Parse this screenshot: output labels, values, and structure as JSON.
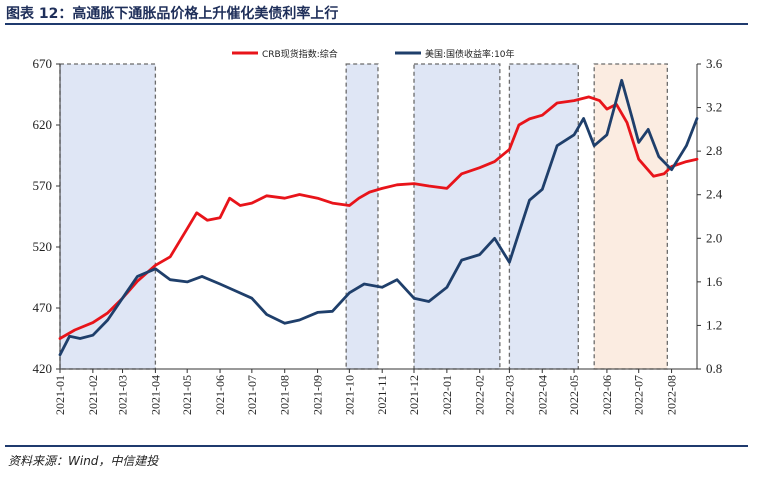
{
  "title": "图表 12：高通胀下通胀品价格上升催化美债利率上行",
  "source": "资料来源：Wind，中信建投",
  "colors": {
    "crb": "#e8141a",
    "treasury": "#1f3f6b",
    "shade_blue": "#dfe6f5",
    "shade_orange": "#fbece1",
    "box_border": "#6b6b6b"
  },
  "chart_data": {
    "type": "line",
    "x": [
      "2021-01",
      "2021-02",
      "2021-03",
      "2021-04",
      "2021-05",
      "2021-06",
      "2021-07",
      "2021-08",
      "2021-09",
      "2021-10",
      "2021-11",
      "2021-12",
      "2022-01",
      "2022-02",
      "2022-03",
      "2022-04",
      "2022-05",
      "2022-06",
      "2022-07",
      "2022-08"
    ],
    "x_start": "2021-01",
    "x_end": "2022-08-25",
    "y_left": {
      "lim": [
        420,
        670
      ],
      "ticks": [
        420,
        470,
        520,
        570,
        620,
        670
      ]
    },
    "y_right": {
      "lim": [
        0.8,
        3.6
      ],
      "ticks": [
        "0.8",
        "1.2",
        "1.6",
        "2.0",
        "2.4",
        "2.8",
        "3.2",
        "3.6"
      ]
    },
    "series": [
      {
        "name": "CRB现货指数:综合",
        "axis": "left",
        "color": "#e8141a",
        "points": [
          [
            "2021-01-01",
            445
          ],
          [
            "2021-01-15",
            452
          ],
          [
            "2021-02-01",
            458
          ],
          [
            "2021-02-15",
            466
          ],
          [
            "2021-03-01",
            478
          ],
          [
            "2021-03-15",
            492
          ],
          [
            "2021-04-01",
            505
          ],
          [
            "2021-04-15",
            512
          ],
          [
            "2021-05-01",
            535
          ],
          [
            "2021-05-10",
            548
          ],
          [
            "2021-05-20",
            542
          ],
          [
            "2021-06-01",
            544
          ],
          [
            "2021-06-10",
            560
          ],
          [
            "2021-06-20",
            554
          ],
          [
            "2021-07-01",
            556
          ],
          [
            "2021-07-15",
            562
          ],
          [
            "2021-08-01",
            560
          ],
          [
            "2021-08-15",
            563
          ],
          [
            "2021-09-01",
            560
          ],
          [
            "2021-09-15",
            556
          ],
          [
            "2021-10-01",
            554
          ],
          [
            "2021-10-10",
            560
          ],
          [
            "2021-10-20",
            565
          ],
          [
            "2021-11-01",
            568
          ],
          [
            "2021-11-15",
            571
          ],
          [
            "2021-12-01",
            572
          ],
          [
            "2021-12-15",
            570
          ],
          [
            "2022-01-01",
            568
          ],
          [
            "2022-01-15",
            580
          ],
          [
            "2022-02-01",
            585
          ],
          [
            "2022-02-15",
            590
          ],
          [
            "2022-03-01",
            600
          ],
          [
            "2022-03-10",
            620
          ],
          [
            "2022-03-20",
            625
          ],
          [
            "2022-04-01",
            628
          ],
          [
            "2022-04-15",
            638
          ],
          [
            "2022-05-01",
            640
          ],
          [
            "2022-05-15",
            643
          ],
          [
            "2022-05-25",
            640
          ],
          [
            "2022-06-01",
            633
          ],
          [
            "2022-06-10",
            637
          ],
          [
            "2022-06-20",
            622
          ],
          [
            "2022-07-01",
            592
          ],
          [
            "2022-07-15",
            578
          ],
          [
            "2022-07-25",
            580
          ],
          [
            "2022-08-01",
            586
          ],
          [
            "2022-08-15",
            590
          ],
          [
            "2022-08-25",
            592
          ]
        ]
      },
      {
        "name": "美国:国债收益率:10年",
        "axis": "right",
        "color": "#1f3f6b",
        "points": [
          [
            "2021-01-01",
            0.93
          ],
          [
            "2021-01-10",
            1.1
          ],
          [
            "2021-01-20",
            1.08
          ],
          [
            "2021-02-01",
            1.11
          ],
          [
            "2021-02-15",
            1.25
          ],
          [
            "2021-03-01",
            1.45
          ],
          [
            "2021-03-15",
            1.65
          ],
          [
            "2021-04-01",
            1.72
          ],
          [
            "2021-04-15",
            1.62
          ],
          [
            "2021-05-01",
            1.6
          ],
          [
            "2021-05-15",
            1.65
          ],
          [
            "2021-06-01",
            1.58
          ],
          [
            "2021-06-15",
            1.52
          ],
          [
            "2021-07-01",
            1.45
          ],
          [
            "2021-07-15",
            1.3
          ],
          [
            "2021-08-01",
            1.22
          ],
          [
            "2021-08-15",
            1.25
          ],
          [
            "2021-09-01",
            1.32
          ],
          [
            "2021-09-15",
            1.33
          ],
          [
            "2021-10-01",
            1.5
          ],
          [
            "2021-10-15",
            1.58
          ],
          [
            "2021-11-01",
            1.55
          ],
          [
            "2021-11-15",
            1.62
          ],
          [
            "2021-12-01",
            1.45
          ],
          [
            "2021-12-15",
            1.42
          ],
          [
            "2022-01-01",
            1.55
          ],
          [
            "2022-01-15",
            1.8
          ],
          [
            "2022-02-01",
            1.85
          ],
          [
            "2022-02-15",
            2.0
          ],
          [
            "2022-03-01",
            1.78
          ],
          [
            "2022-03-10",
            2.05
          ],
          [
            "2022-03-20",
            2.35
          ],
          [
            "2022-04-01",
            2.45
          ],
          [
            "2022-04-15",
            2.85
          ],
          [
            "2022-05-01",
            2.95
          ],
          [
            "2022-05-10",
            3.1
          ],
          [
            "2022-05-20",
            2.85
          ],
          [
            "2022-06-01",
            2.95
          ],
          [
            "2022-06-15",
            3.45
          ],
          [
            "2022-06-25",
            3.1
          ],
          [
            "2022-07-01",
            2.88
          ],
          [
            "2022-07-10",
            3.0
          ],
          [
            "2022-07-20",
            2.75
          ],
          [
            "2022-08-01",
            2.63
          ],
          [
            "2022-08-15",
            2.85
          ],
          [
            "2022-08-25",
            3.1
          ]
        ]
      }
    ],
    "shaded_periods": [
      {
        "start": "2021-01-01",
        "end": "2021-04-01",
        "color": "blue"
      },
      {
        "start": "2021-09-28",
        "end": "2021-10-28",
        "color": "blue"
      },
      {
        "start": "2021-12-01",
        "end": "2022-02-20",
        "color": "blue"
      },
      {
        "start": "2022-03-01",
        "end": "2022-05-05",
        "color": "blue"
      },
      {
        "start": "2022-05-20",
        "end": "2022-07-28",
        "color": "orange"
      }
    ],
    "legend": "top-center",
    "grid": false
  }
}
